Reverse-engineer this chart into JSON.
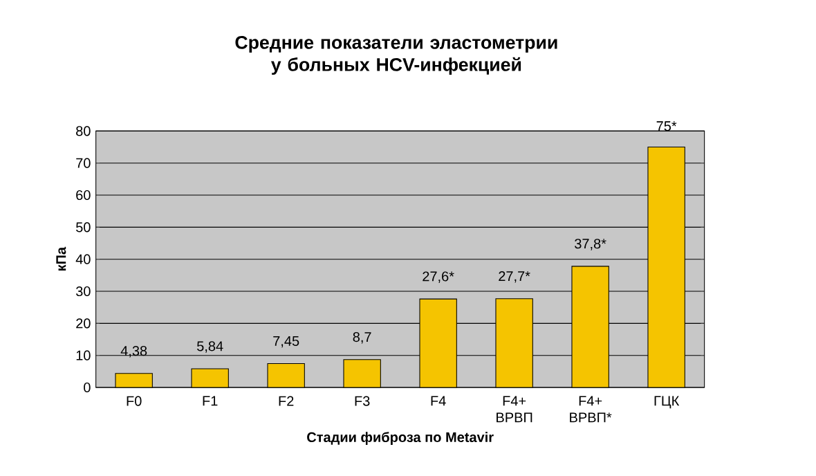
{
  "chart_data": {
    "type": "bar",
    "title": "Средние показатели эластометрии у больных HCV-инфекцией",
    "xlabel": "Стадии фиброза по Metavir",
    "ylabel": "кПа",
    "categories": [
      "F0",
      "F1",
      "F2",
      "F3",
      "F4",
      "F4+ ВРВП",
      "F4+ ВРВП*",
      "ГЦК"
    ],
    "values": [
      4.38,
      5.84,
      7.45,
      8.7,
      27.6,
      27.7,
      37.8,
      75
    ],
    "value_labels": [
      "4,38",
      "5,84",
      "7,45",
      "8,7",
      "27,6*",
      "27,7*",
      "37,8*",
      "75*"
    ],
    "color": "#f5c400",
    "ylim": [
      0,
      80
    ],
    "yticks": [
      0,
      10,
      20,
      30,
      40,
      50,
      60,
      70,
      80
    ],
    "grid": "y"
  }
}
